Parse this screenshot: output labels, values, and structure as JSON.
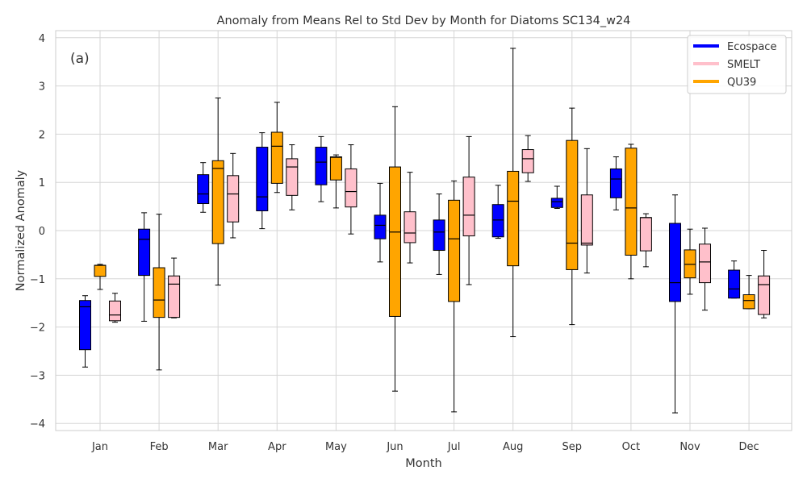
{
  "chart_data": {
    "type": "boxplot",
    "title": "Anomaly from Means Rel to Std Dev by Month for Diatoms SC134_w24",
    "xlabel": "Month",
    "ylabel": "Normalized Anomaly",
    "panel_label": "(a)",
    "ylim": [
      -4.15,
      4.15
    ],
    "yticks": [
      -4,
      -3,
      -2,
      -1,
      0,
      1,
      2,
      3,
      4
    ],
    "ytick_labels": [
      "−4",
      "−3",
      "−2",
      "−1",
      "0",
      "1",
      "2",
      "3",
      "4"
    ],
    "grid": true,
    "legend_position": "top-right",
    "categories": [
      "Jan",
      "Feb",
      "Mar",
      "Apr",
      "May",
      "Jun",
      "Jul",
      "Aug",
      "Sep",
      "Oct",
      "Nov",
      "Dec"
    ],
    "series": [
      {
        "name": "Ecospace",
        "color": "#0000ff",
        "boxes": [
          {
            "min": -2.83,
            "q1": -2.47,
            "median": -1.58,
            "q3": -1.45,
            "max": -1.35
          },
          {
            "min": -1.88,
            "q1": -0.93,
            "median": -0.18,
            "q3": 0.03,
            "max": 0.37
          },
          {
            "min": 0.38,
            "q1": 0.56,
            "median": 0.76,
            "q3": 1.16,
            "max": 1.41
          },
          {
            "min": 0.04,
            "q1": 0.41,
            "median": 0.7,
            "q3": 1.73,
            "max": 2.03
          },
          {
            "min": 0.6,
            "q1": 0.95,
            "median": 1.42,
            "q3": 1.73,
            "max": 1.95
          },
          {
            "min": -0.65,
            "q1": -0.17,
            "median": 0.11,
            "q3": 0.32,
            "max": 0.98
          },
          {
            "min": -0.91,
            "q1": -0.41,
            "median": -0.03,
            "q3": 0.22,
            "max": 0.76
          },
          {
            "min": -0.16,
            "q1": -0.13,
            "median": 0.22,
            "q3": 0.54,
            "max": 0.94
          },
          {
            "min": 0.46,
            "q1": 0.48,
            "median": 0.6,
            "q3": 0.67,
            "max": 0.92
          },
          {
            "min": 0.43,
            "q1": 0.68,
            "median": 1.07,
            "q3": 1.28,
            "max": 1.53
          },
          {
            "min": -3.78,
            "q1": -1.47,
            "median": -1.08,
            "q3": 0.15,
            "max": 0.74
          },
          {
            "min": -1.4,
            "q1": -1.4,
            "median": -1.21,
            "q3": -0.82,
            "max": -0.63
          }
        ]
      },
      {
        "name": "QU39",
        "color": "#ffa500",
        "boxes": [
          {
            "min": -1.22,
            "q1": -0.95,
            "median": -0.72,
            "q3": -0.72,
            "max": -0.7
          },
          {
            "min": -2.89,
            "q1": -1.8,
            "median": -1.44,
            "q3": -0.77,
            "max": 0.34
          },
          {
            "min": -1.13,
            "q1": -0.27,
            "median": 1.29,
            "q3": 1.45,
            "max": 2.75
          },
          {
            "min": 0.79,
            "q1": 0.98,
            "median": 1.75,
            "q3": 2.04,
            "max": 2.66
          },
          {
            "min": 0.47,
            "q1": 1.05,
            "median": 1.52,
            "q3": 1.53,
            "max": 1.57
          },
          {
            "min": -3.33,
            "q1": -1.78,
            "median": -0.03,
            "q3": 1.32,
            "max": 2.57
          },
          {
            "min": -3.76,
            "q1": -1.47,
            "median": -0.17,
            "q3": 0.63,
            "max": 1.03
          },
          {
            "min": -2.2,
            "q1": -0.73,
            "median": 0.61,
            "q3": 1.23,
            "max": 3.78
          },
          {
            "min": -1.95,
            "q1": -0.81,
            "median": -0.26,
            "q3": 1.87,
            "max": 2.54
          },
          {
            "min": -1.0,
            "q1": -0.51,
            "median": 0.47,
            "q3": 1.71,
            "max": 1.79
          },
          {
            "min": -1.32,
            "q1": -0.98,
            "median": -0.7,
            "q3": -0.4,
            "max": 0.03
          },
          {
            "min": -1.62,
            "q1": -1.62,
            "median": -1.45,
            "q3": -1.33,
            "max": -0.93
          }
        ]
      },
      {
        "name": "SMELT",
        "color": "#ffc0cb",
        "boxes": [
          {
            "min": -1.9,
            "q1": -1.87,
            "median": -1.75,
            "q3": -1.46,
            "max": -1.3
          },
          {
            "min": -1.81,
            "q1": -1.8,
            "median": -1.11,
            "q3": -0.94,
            "max": -0.57
          },
          {
            "min": -0.15,
            "q1": 0.18,
            "median": 0.76,
            "q3": 1.14,
            "max": 1.6
          },
          {
            "min": 0.43,
            "q1": 0.73,
            "median": 1.32,
            "q3": 1.49,
            "max": 1.78
          },
          {
            "min": -0.07,
            "q1": 0.49,
            "median": 0.81,
            "q3": 1.28,
            "max": 1.78
          },
          {
            "min": -0.67,
            "q1": -0.25,
            "median": -0.05,
            "q3": 0.39,
            "max": 1.21
          },
          {
            "min": -1.12,
            "q1": -0.11,
            "median": 0.32,
            "q3": 1.11,
            "max": 1.95
          },
          {
            "min": 1.02,
            "q1": 1.2,
            "median": 1.49,
            "q3": 1.68,
            "max": 1.97
          },
          {
            "min": -0.88,
            "q1": -0.3,
            "median": -0.26,
            "q3": 0.74,
            "max": 1.7
          },
          {
            "min": -0.75,
            "q1": -0.42,
            "median": 0.27,
            "q3": 0.27,
            "max": 0.35
          },
          {
            "min": -1.65,
            "q1": -1.08,
            "median": -0.65,
            "q3": -0.28,
            "max": 0.05
          },
          {
            "min": -1.81,
            "q1": -1.74,
            "median": -1.12,
            "q3": -0.94,
            "max": -0.41
          }
        ]
      }
    ],
    "legend": [
      "Ecospace",
      "SMELT",
      "QU39"
    ],
    "legend_colors": [
      "#0000ff",
      "#ffc0cb",
      "#ffa500"
    ]
  }
}
